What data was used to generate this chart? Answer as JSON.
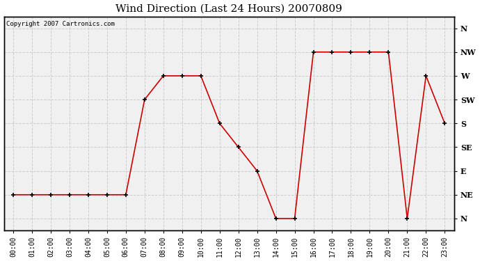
{
  "title": "Wind Direction (Last 24 Hours) 20070809",
  "copyright": "Copyright 2007 Cartronics.com",
  "background_color": "#ffffff",
  "plot_bg_color": "#f0f0f0",
  "line_color": "#cc0000",
  "marker": "+",
  "marker_color": "#000000",
  "x_labels": [
    "00:00",
    "01:00",
    "02:00",
    "03:00",
    "04:00",
    "05:00",
    "06:00",
    "07:00",
    "08:00",
    "09:00",
    "10:00",
    "11:00",
    "12:00",
    "13:00",
    "14:00",
    "15:00",
    "16:00",
    "17:00",
    "18:00",
    "19:00",
    "20:00",
    "21:00",
    "22:00",
    "23:00"
  ],
  "y_ticks": [
    0,
    1,
    2,
    3,
    4,
    5,
    6,
    7,
    8
  ],
  "y_labels": [
    "N",
    "NE",
    "E",
    "SE",
    "S",
    "SW",
    "W",
    "NW",
    "N"
  ],
  "y_values": [
    1,
    1,
    1,
    1,
    1,
    1,
    1,
    5,
    6,
    6,
    6,
    4,
    3,
    2,
    0,
    0,
    7,
    7,
    7,
    7,
    7,
    0,
    6,
    4
  ],
  "grid_color": "#cccccc",
  "title_fontsize": 11,
  "tick_fontsize": 7,
  "ylabel_fontsize": 8
}
